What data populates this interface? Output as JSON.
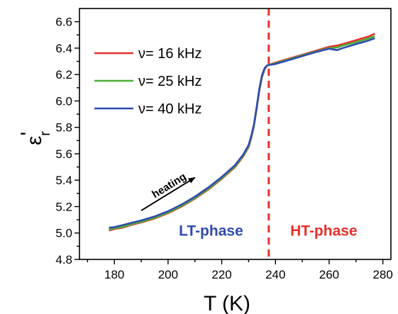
{
  "chart_data": {
    "type": "line",
    "xlabel": "T (K)",
    "ylabel_main": "ε",
    "ylabel_prime": "'",
    "ylabel_sub": "r",
    "xlim": [
      167,
      283
    ],
    "ylim": [
      4.8,
      6.7
    ],
    "x_ticks": [
      180,
      200,
      220,
      240,
      260,
      280
    ],
    "y_ticks": [
      4.8,
      5.0,
      5.2,
      5.4,
      5.6,
      5.8,
      6.0,
      6.2,
      6.4,
      6.6
    ],
    "grid": false,
    "legend_position": "top-left",
    "series": [
      {
        "name": "ν= 16 kHz",
        "color": "#e8302a",
        "x": [
          178,
          180,
          183,
          186,
          190,
          195,
          200,
          205,
          210,
          215,
          220,
          225,
          228,
          230,
          231,
          232,
          233,
          234,
          235,
          236,
          237,
          240,
          245,
          250,
          255,
          260,
          263,
          265,
          270,
          275,
          277
        ],
        "y": [
          5.02,
          5.03,
          5.04,
          5.06,
          5.08,
          5.11,
          5.15,
          5.2,
          5.26,
          5.33,
          5.41,
          5.5,
          5.58,
          5.65,
          5.72,
          5.81,
          5.94,
          6.08,
          6.18,
          6.24,
          6.27,
          6.29,
          6.32,
          6.35,
          6.38,
          6.41,
          6.42,
          6.43,
          6.46,
          6.49,
          6.51
        ]
      },
      {
        "name": "ν= 25 kHz",
        "color": "#4caf37",
        "x": [
          178,
          180,
          183,
          186,
          190,
          195,
          200,
          205,
          210,
          215,
          220,
          225,
          228,
          230,
          231,
          232,
          233,
          234,
          235,
          236,
          237,
          240,
          245,
          250,
          255,
          260,
          263,
          265,
          270,
          275,
          277
        ],
        "y": [
          5.03,
          5.035,
          5.045,
          5.065,
          5.085,
          5.115,
          5.155,
          5.205,
          5.265,
          5.335,
          5.415,
          5.505,
          5.585,
          5.655,
          5.725,
          5.815,
          5.945,
          6.085,
          6.185,
          6.245,
          6.27,
          6.285,
          6.315,
          6.345,
          6.375,
          6.4,
          6.405,
          6.42,
          6.445,
          6.475,
          6.49
        ]
      },
      {
        "name": "ν= 40 kHz",
        "color": "#2f4bb0",
        "x": [
          178,
          180,
          183,
          186,
          190,
          195,
          200,
          205,
          210,
          215,
          220,
          225,
          228,
          230,
          231,
          232,
          233,
          234,
          235,
          236,
          237,
          240,
          245,
          250,
          255,
          260,
          263,
          265,
          270,
          275,
          277
        ],
        "y": [
          5.04,
          5.045,
          5.06,
          5.075,
          5.095,
          5.125,
          5.165,
          5.215,
          5.275,
          5.345,
          5.425,
          5.515,
          5.595,
          5.665,
          5.735,
          5.825,
          5.955,
          6.095,
          6.195,
          6.25,
          6.27,
          6.28,
          6.31,
          6.34,
          6.37,
          6.395,
          6.385,
          6.4,
          6.43,
          6.46,
          6.475
        ]
      }
    ],
    "phase_boundary": {
      "x": 237.5,
      "color": "#e8302a",
      "style": "dashed"
    },
    "annotations": [
      {
        "text": "heating",
        "type": "arrow",
        "from": [
          190,
          5.17
        ],
        "to": [
          210,
          5.42
        ]
      },
      {
        "text": "LT-phase",
        "color": "#2f4bb0",
        "anchor": [
          216,
          4.98
        ]
      },
      {
        "text": "HT-phase",
        "color": "#e8302a",
        "anchor": [
          258,
          4.98
        ]
      }
    ]
  }
}
